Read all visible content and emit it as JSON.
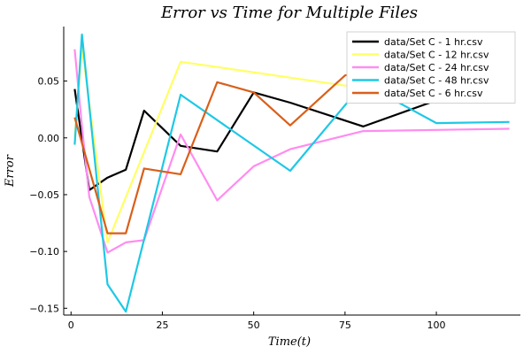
{
  "chart_data": {
    "type": "line",
    "title": "Error vs Time for Multiple Files",
    "xlabel": "Time(t)",
    "ylabel": "Error",
    "xlim": [
      -2,
      123
    ],
    "ylim": [
      -0.156,
      0.098
    ],
    "xticks": [
      0,
      25,
      50,
      75,
      100
    ],
    "yticks": [
      -0.15,
      -0.1,
      -0.05,
      0.0,
      0.05
    ],
    "xtick_labels": [
      "0",
      "25",
      "50",
      "75",
      "100"
    ],
    "ytick_labels": [
      "−0.15",
      "−0.10",
      "−0.05",
      "0.00",
      "0.05"
    ],
    "grid": false,
    "legend_position": "top-right",
    "series": [
      {
        "name": "data/Set C - 1 hr.csv",
        "color": "#000000",
        "points": [
          [
            1,
            0.043
          ],
          [
            5,
            -0.046
          ],
          [
            10,
            -0.035
          ],
          [
            15,
            -0.028
          ],
          [
            20,
            0.024
          ],
          [
            30,
            -0.007
          ],
          [
            40,
            -0.012
          ],
          [
            50,
            0.04
          ],
          [
            60,
            0.031
          ],
          [
            80,
            0.01
          ],
          [
            100,
            0.033
          ],
          [
            120,
            0.052
          ]
        ]
      },
      {
        "name": "data/Set C - 12 hr.csv",
        "color": "#ffff66",
        "points": [
          [
            1,
            0.0
          ],
          [
            3,
            0.08
          ],
          [
            10,
            -0.092
          ],
          [
            30,
            0.067
          ],
          [
            75,
            0.046
          ],
          [
            90,
            0.045
          ]
        ]
      },
      {
        "name": "data/Set C - 24 hr.csv",
        "color": "#ff8cf0",
        "points": [
          [
            1,
            0.078
          ],
          [
            3,
            0.01
          ],
          [
            5,
            -0.052
          ],
          [
            10,
            -0.101
          ],
          [
            15,
            -0.092
          ],
          [
            20,
            -0.09
          ],
          [
            30,
            0.003
          ],
          [
            40,
            -0.055
          ],
          [
            50,
            -0.025
          ],
          [
            60,
            -0.01
          ],
          [
            80,
            0.006
          ],
          [
            120,
            0.008
          ]
        ]
      },
      {
        "name": "data/Set C - 48 hr.csv",
        "color": "#1ec8e6",
        "points": [
          [
            1,
            -0.006
          ],
          [
            3,
            0.091
          ],
          [
            10,
            -0.129
          ],
          [
            15,
            -0.153
          ],
          [
            30,
            0.038
          ],
          [
            60,
            -0.029
          ],
          [
            80,
            0.048
          ],
          [
            100,
            0.013
          ],
          [
            120,
            0.014
          ]
        ]
      },
      {
        "name": "data/Set C - 6 hr.csv",
        "color": "#d95f1a",
        "points": [
          [
            1,
            0.018
          ],
          [
            10,
            -0.084
          ],
          [
            15,
            -0.084
          ],
          [
            20,
            -0.027
          ],
          [
            30,
            -0.032
          ],
          [
            40,
            0.049
          ],
          [
            50,
            0.04
          ],
          [
            60,
            0.011
          ],
          [
            75,
            0.055
          ],
          [
            90,
            0.064
          ],
          [
            120,
            0.076
          ]
        ]
      }
    ]
  }
}
